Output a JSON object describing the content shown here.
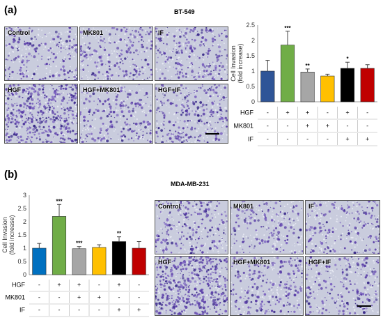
{
  "panel_a": {
    "label": "(a)",
    "cell_line": "BT-549",
    "tiles": [
      "Control",
      "MK801",
      "IF",
      "HGF",
      "HGF+MK801",
      "HGF+IF"
    ],
    "tile_density": [
      0.35,
      0.38,
      0.42,
      0.85,
      0.38,
      0.5
    ]
  },
  "panel_b": {
    "label": "(b)",
    "cell_line": "MDA-MB-231",
    "tiles": [
      "Control",
      "MK801",
      "IF",
      "HGF",
      "HGF+MK801",
      "HGF+IF"
    ],
    "tile_density": [
      0.35,
      0.3,
      0.32,
      0.9,
      0.4,
      0.38
    ]
  },
  "chart_data": [
    {
      "type": "bar",
      "panel": "a",
      "ylabel_lines": [
        "Cell Invasion",
        "(fold increase)"
      ],
      "ylim": [
        0,
        2.5
      ],
      "yticks": [
        0,
        0.5,
        1,
        1.5,
        2,
        2.5
      ],
      "grid": false,
      "values": [
        1.0,
        1.85,
        0.97,
        0.84,
        1.09,
        1.09
      ],
      "errors": [
        0.35,
        0.45,
        0.1,
        0.06,
        0.2,
        0.12
      ],
      "significance": [
        "",
        "***",
        "**",
        "",
        "*",
        ""
      ],
      "colors": [
        "#2f5597",
        "#70ad47",
        "#a6a6a6",
        "#ffc000",
        "#000000",
        "#c00000"
      ],
      "treatment_rows": [
        {
          "name": "HGF",
          "signs": [
            "-",
            "+",
            "+",
            "-",
            "+",
            "-"
          ]
        },
        {
          "name": "MK801",
          "signs": [
            "-",
            "-",
            "+",
            "+",
            "-",
            "-"
          ]
        },
        {
          "name": "IF",
          "signs": [
            "-",
            "-",
            "-",
            "-",
            "+",
            "+"
          ]
        }
      ]
    },
    {
      "type": "bar",
      "panel": "b",
      "ylabel_lines": [
        "Cell Invasion",
        "(fold increase)"
      ],
      "ylim": [
        0,
        3
      ],
      "yticks": [
        0,
        0.5,
        1,
        1.5,
        2,
        2.5,
        3
      ],
      "grid": false,
      "values": [
        1.0,
        2.2,
        0.98,
        1.03,
        1.25,
        1.0
      ],
      "errors": [
        0.18,
        0.45,
        0.08,
        0.1,
        0.18,
        0.25
      ],
      "significance": [
        "",
        "***",
        "***",
        "",
        "**",
        ""
      ],
      "colors": [
        "#0070c0",
        "#70ad47",
        "#a6a6a6",
        "#ffc000",
        "#000000",
        "#c00000"
      ],
      "treatment_rows": [
        {
          "name": "HGF",
          "signs": [
            "-",
            "+",
            "+",
            "-",
            "+",
            "-"
          ]
        },
        {
          "name": "MK801",
          "signs": [
            "-",
            "-",
            "+",
            "+",
            "-",
            "-"
          ]
        },
        {
          "name": "IF",
          "signs": [
            "-",
            "-",
            "-",
            "-",
            "+",
            "+"
          ]
        }
      ]
    }
  ]
}
